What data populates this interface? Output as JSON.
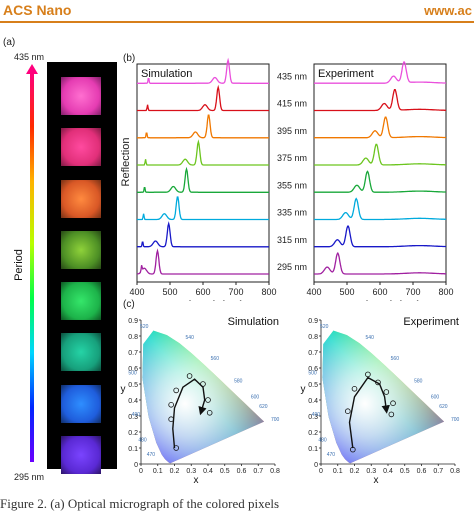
{
  "header": {
    "journal": "ACS Nano",
    "url": "www.ac"
  },
  "panel_a": {
    "label": "(a)",
    "period_top": "435 nm",
    "period_bottom": "295 nm",
    "axis_label": "Period"
  },
  "chart_data": [
    {
      "type": "line",
      "label": "(b)",
      "title": "Simulation",
      "xlabel": "Wavelength (nm)",
      "ylabel": "Reflection",
      "xlim": [
        400,
        800
      ],
      "xticks": [
        "400",
        "500",
        "600",
        "700",
        "800"
      ],
      "grid": false,
      "series": [
        {
          "name": "295 nm",
          "color": "#a020a0",
          "peak": 462
        },
        {
          "name": "315 nm",
          "color": "#1818c8",
          "peak": 496
        },
        {
          "name": "335 nm",
          "color": "#00aadd",
          "peak": 523
        },
        {
          "name": "355 nm",
          "color": "#19a83a",
          "peak": 550
        },
        {
          "name": "375 nm",
          "color": "#6cc51f",
          "peak": 586
        },
        {
          "name": "395 nm",
          "color": "#f07800",
          "peak": 617
        },
        {
          "name": "415 nm",
          "color": "#d8101a",
          "peak": 646
        },
        {
          "name": "435 nm",
          "color": "#ea50dc",
          "peak": 676
        }
      ]
    },
    {
      "type": "line",
      "title": "Experiment",
      "xlabel": "Wavelength (nm)",
      "xlim": [
        400,
        800
      ],
      "xticks": [
        "400",
        "500",
        "600",
        "700",
        "800"
      ],
      "grid": false,
      "series": [
        {
          "name": "295 nm",
          "color": "#a020a0",
          "peak": 472
        },
        {
          "name": "315 nm",
          "color": "#1818c8",
          "peak": 503
        },
        {
          "name": "335 nm",
          "color": "#00aadd",
          "peak": 528
        },
        {
          "name": "355 nm",
          "color": "#19a83a",
          "peak": 562
        },
        {
          "name": "375 nm",
          "color": "#6cc51f",
          "peak": 589
        },
        {
          "name": "395 nm",
          "color": "#f07800",
          "peak": 617
        },
        {
          "name": "415 nm",
          "color": "#d8101a",
          "peak": 645
        },
        {
          "name": "435 nm",
          "color": "#ea50dc",
          "peak": 673
        }
      ]
    },
    {
      "type": "scatter",
      "label": "(c)",
      "title": "Simulation",
      "xlabel": "x",
      "ylabel": "y",
      "xlim": [
        0,
        0.8
      ],
      "ylim": [
        0,
        0.9
      ],
      "xticks": [
        "0",
        "0.1",
        "0.2",
        "0.3",
        "0.4",
        "0.5",
        "0.6",
        "0.7",
        "0.8"
      ],
      "yticks": [
        "0",
        "0.1",
        "0.2",
        "0.3",
        "0.4",
        "0.5",
        "0.6",
        "0.7",
        "0.8",
        "0.9"
      ],
      "locus_ticks": [
        "520",
        "540",
        "560",
        "580",
        "600",
        "620",
        "700",
        "500",
        "490",
        "480",
        "470"
      ],
      "points": [
        {
          "x": 0.21,
          "y": 0.1
        },
        {
          "x": 0.18,
          "y": 0.28
        },
        {
          "x": 0.18,
          "y": 0.37
        },
        {
          "x": 0.21,
          "y": 0.46
        },
        {
          "x": 0.29,
          "y": 0.55
        },
        {
          "x": 0.37,
          "y": 0.5
        },
        {
          "x": 0.4,
          "y": 0.4
        },
        {
          "x": 0.41,
          "y": 0.32
        }
      ]
    },
    {
      "type": "scatter",
      "title": "Experiment",
      "xlabel": "x",
      "ylabel": "y",
      "xlim": [
        0,
        0.8
      ],
      "ylim": [
        0,
        0.9
      ],
      "xticks": [
        "0",
        "0.1",
        "0.2",
        "0.3",
        "0.4",
        "0.5",
        "0.6",
        "0.7",
        "0.8"
      ],
      "yticks": [
        "0",
        "0.1",
        "0.2",
        "0.3",
        "0.4",
        "0.5",
        "0.6",
        "0.7",
        "0.8",
        "0.9"
      ],
      "locus_ticks": [
        "520",
        "540",
        "560",
        "580",
        "600",
        "620",
        "700",
        "500",
        "490",
        "480",
        "470"
      ],
      "points": [
        {
          "x": 0.19,
          "y": 0.09
        },
        {
          "x": 0.16,
          "y": 0.33
        },
        {
          "x": 0.2,
          "y": 0.47
        },
        {
          "x": 0.28,
          "y": 0.56
        },
        {
          "x": 0.34,
          "y": 0.51
        },
        {
          "x": 0.39,
          "y": 0.45
        },
        {
          "x": 0.43,
          "y": 0.38
        },
        {
          "x": 0.42,
          "y": 0.31
        }
      ]
    }
  ],
  "caption": "Figure 2. (a) Optical micrograph of the colored pixels"
}
